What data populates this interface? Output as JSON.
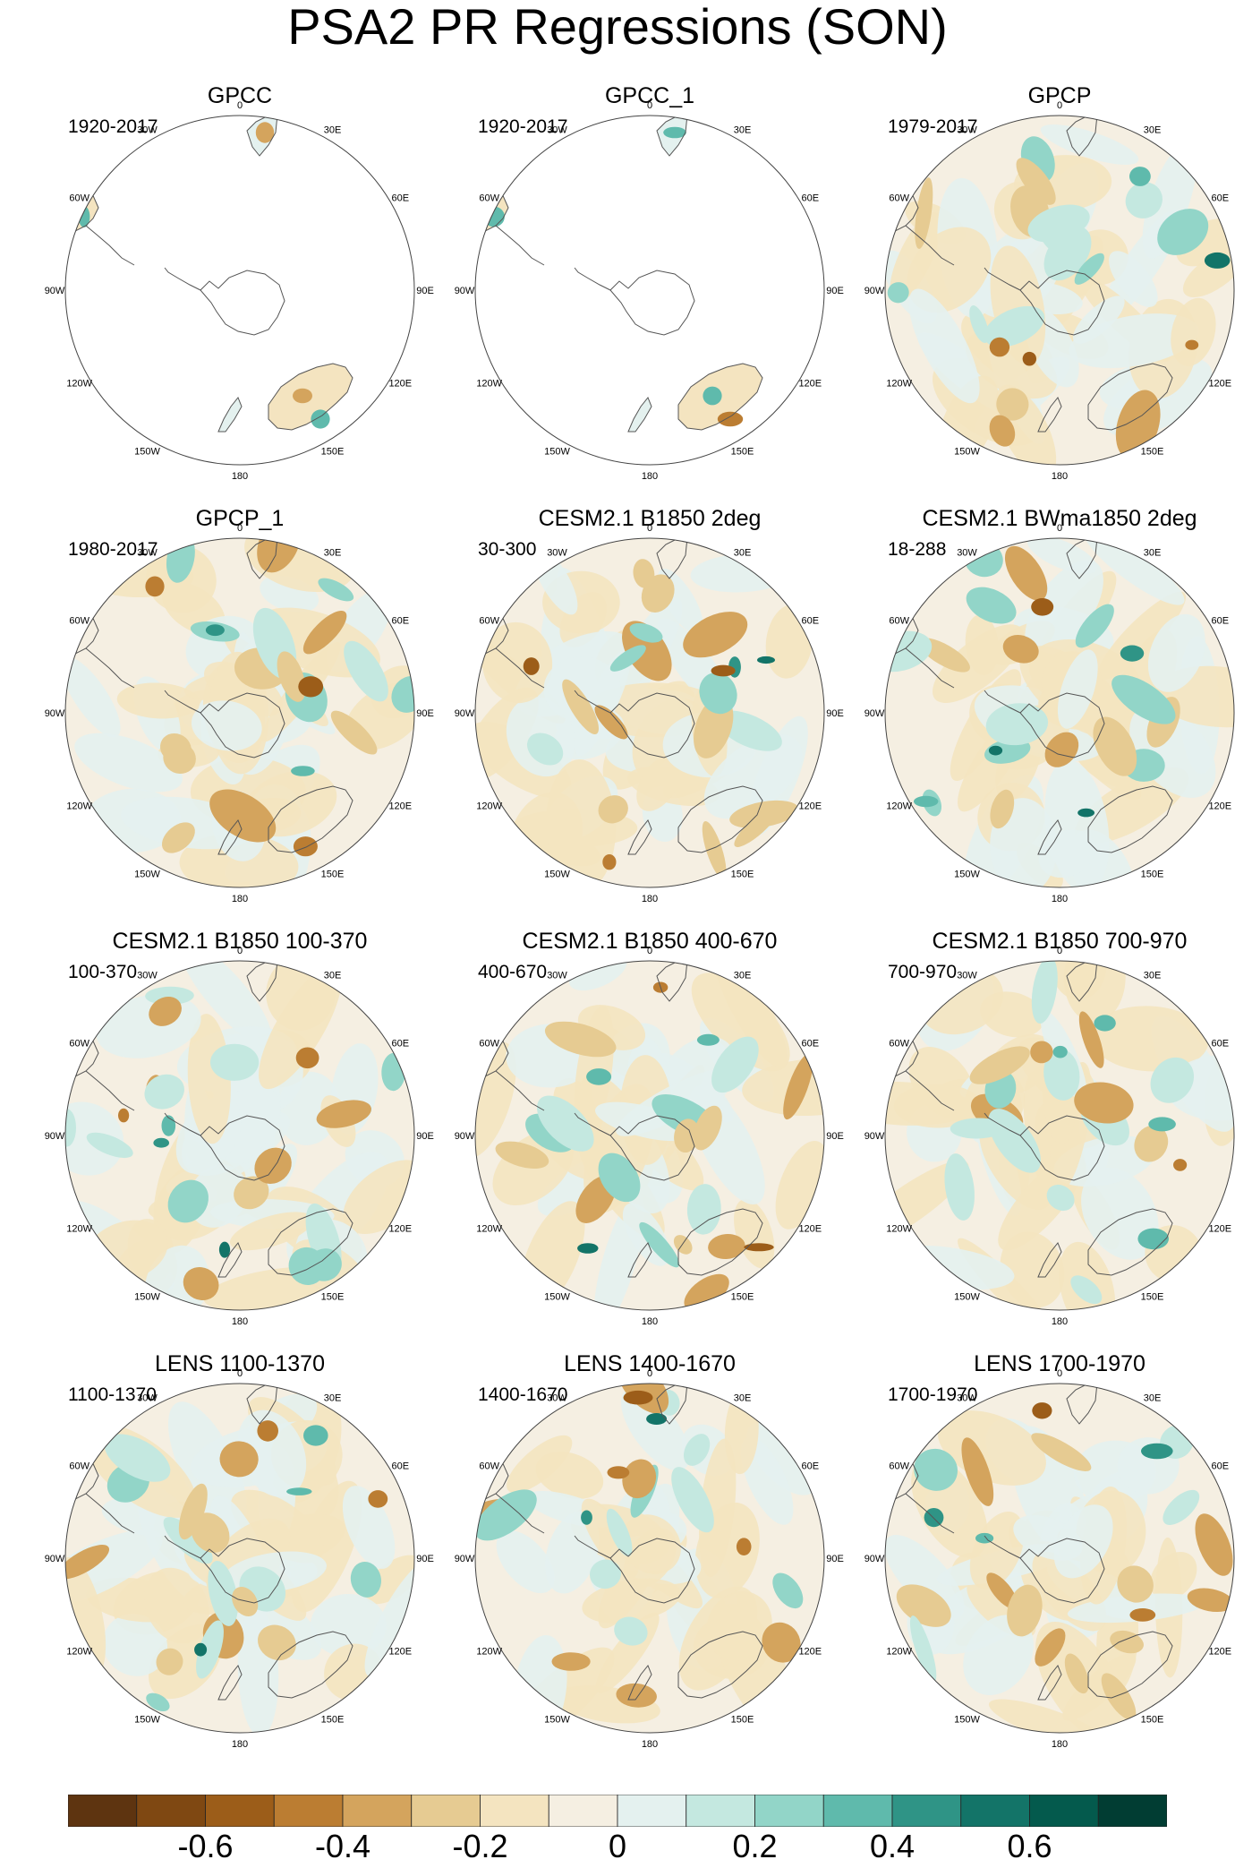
{
  "title": "PSA2 PR Regressions (SON)",
  "longitude_labels": [
    "0",
    "30E",
    "60E",
    "90E",
    "120E",
    "150E",
    "180",
    "150W",
    "120W",
    "90W",
    "60W",
    "30W"
  ],
  "panels": [
    {
      "title": "GPCC",
      "years": "1920-2017",
      "coverage": "land"
    },
    {
      "title": "GPCC_1",
      "years": "1920-2017",
      "coverage": "land"
    },
    {
      "title": "GPCP",
      "years": "1979-2017",
      "coverage": "full"
    },
    {
      "title": "GPCP_1",
      "years": "1980-2017",
      "coverage": "full"
    },
    {
      "title": "CESM2.1 B1850 2deg",
      "years": "30-300",
      "coverage": "full"
    },
    {
      "title": "CESM2.1 BWma1850 2deg",
      "years": "18-288",
      "coverage": "full"
    },
    {
      "title": "CESM2.1 B1850 100-370",
      "years": "100-370",
      "coverage": "full"
    },
    {
      "title": "CESM2.1 B1850 400-670",
      "years": "400-670",
      "coverage": "full"
    },
    {
      "title": "CESM2.1 B1850 700-970",
      "years": "700-970",
      "coverage": "full"
    },
    {
      "title": "LENS 1100-1370",
      "years": "1100-1370",
      "coverage": "full"
    },
    {
      "title": "LENS 1400-1670",
      "years": "1400-1670",
      "coverage": "full"
    },
    {
      "title": "LENS 1700-1970",
      "years": "1700-1970",
      "coverage": "full"
    }
  ],
  "colorbar": {
    "colors": [
      "#5e3410",
      "#7f4812",
      "#9c5d19",
      "#bb7d32",
      "#d4a45d",
      "#e6cb92",
      "#f4e4c0",
      "#f5efe2",
      "#e4f1ef",
      "#c4e8e0",
      "#92d5c8",
      "#5fbaac",
      "#2f9486",
      "#137468",
      "#045a4d",
      "#013d33"
    ],
    "ticks": [
      "-0.6",
      "-0.4",
      "-0.2",
      "0",
      "0.2",
      "0.4",
      "0.6"
    ],
    "tick_values": [
      -0.6,
      -0.4,
      -0.2,
      0,
      0.2,
      0.4,
      0.6
    ],
    "range": [
      -0.8,
      0.8
    ]
  }
}
